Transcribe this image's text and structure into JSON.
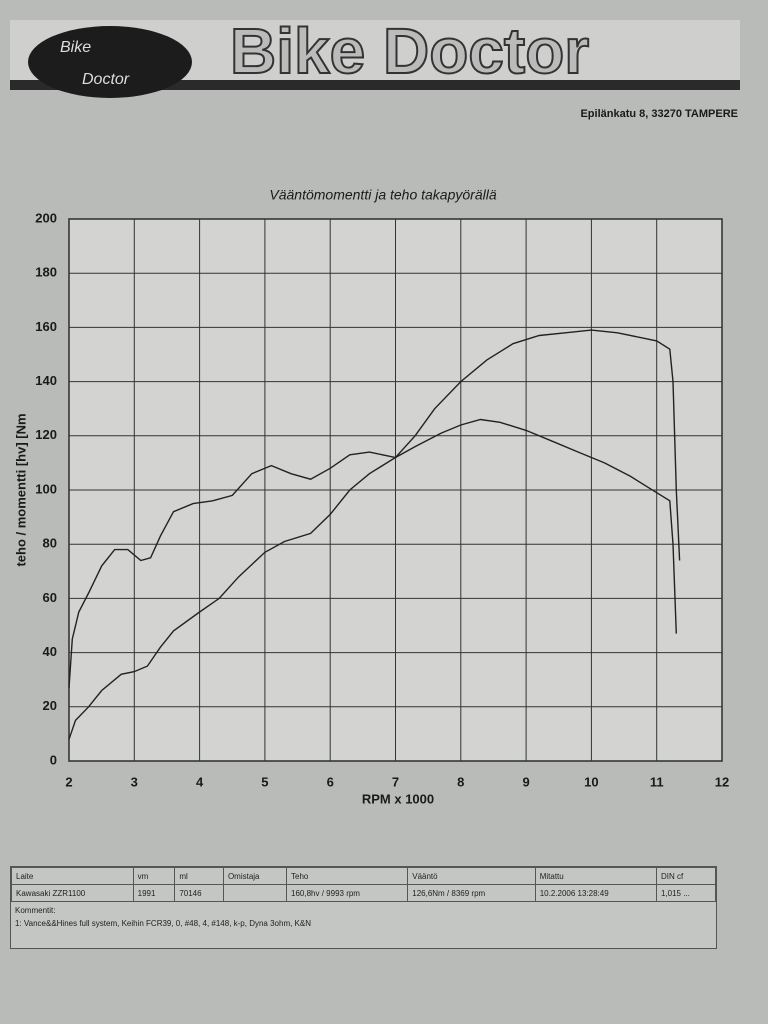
{
  "header": {
    "logo_top": "Bike",
    "logo_bottom": "Doctor",
    "banner": "Bike Doctor",
    "address": "Epilänkatu 8, 33270 TAMPERE"
  },
  "chart_data": {
    "type": "line",
    "title": "Vääntömomentti ja teho takapyörällä",
    "y_label": "teho / momentti [hv] [Nm",
    "x_label": "RPM  x 1000",
    "xlim": [
      2,
      12
    ],
    "xticks": [
      2,
      3,
      4,
      5,
      6,
      7,
      8,
      9,
      10,
      11,
      12
    ],
    "ylim": [
      0,
      200
    ],
    "yticks": [
      0,
      20,
      40,
      60,
      80,
      100,
      120,
      140,
      160,
      180,
      200
    ],
    "grid": true,
    "series": [
      {
        "color": "#222222",
        "x": [
          2.0,
          2.1,
          2.3,
          2.5,
          2.8,
          3.0,
          3.2,
          3.4,
          3.6,
          4.0,
          4.3,
          4.6,
          5.0,
          5.3,
          5.7,
          6.0,
          6.3,
          6.6,
          7.0,
          7.3,
          7.6,
          8.0,
          8.4,
          8.8,
          9.2,
          9.6,
          10.0,
          10.4,
          10.8,
          11.0,
          11.2,
          11.25,
          11.3,
          11.35
        ],
        "values": [
          8,
          15,
          20,
          26,
          32,
          33,
          35,
          42,
          48,
          55,
          60,
          68,
          77,
          81,
          84,
          91,
          100,
          106,
          112,
          120,
          130,
          140,
          148,
          154,
          157,
          158,
          159,
          158,
          156,
          155,
          152,
          140,
          100,
          74
        ]
      },
      {
        "color": "#222222",
        "x": [
          2.0,
          2.05,
          2.15,
          2.3,
          2.5,
          2.7,
          2.9,
          3.1,
          3.25,
          3.4,
          3.6,
          3.9,
          4.2,
          4.5,
          4.8,
          5.1,
          5.4,
          5.7,
          6.0,
          6.3,
          6.6,
          7.0,
          7.3,
          7.7,
          8.0,
          8.3,
          8.6,
          9.0,
          9.4,
          9.8,
          10.2,
          10.6,
          11.0,
          11.2,
          11.25,
          11.3
        ],
        "values": [
          27,
          45,
          55,
          62,
          72,
          78,
          78,
          74,
          75,
          83,
          92,
          95,
          96,
          98,
          106,
          109,
          106,
          104,
          108,
          113,
          114,
          112,
          116,
          121,
          124,
          126,
          125,
          122,
          118,
          114,
          110,
          105,
          99,
          96,
          80,
          47
        ]
      }
    ]
  },
  "table": {
    "columns": [
      {
        "header": "Laite",
        "value": "Kawasaki ZZR1100"
      },
      {
        "header": "vm",
        "value": "1991"
      },
      {
        "header": "ml",
        "value": "70146"
      },
      {
        "header": "Omistaja"
      },
      {
        "header": "Teho",
        "value": "160,8hv / 9993 rpm"
      },
      {
        "header": "Vääntö",
        "value": "126,6Nm / 8369 rpm"
      },
      {
        "header": "Mitattu",
        "value": "10.2.2006 13:28:49"
      },
      {
        "header": "DIN cf",
        "value": "1,015 ..."
      }
    ],
    "comment_label": "Kommentit:",
    "comment": "1:    Vance&&Hines full system, Keihin FCR39, 0, #48, 4, #148, k-p, Dyna 3ohm, K&N"
  }
}
